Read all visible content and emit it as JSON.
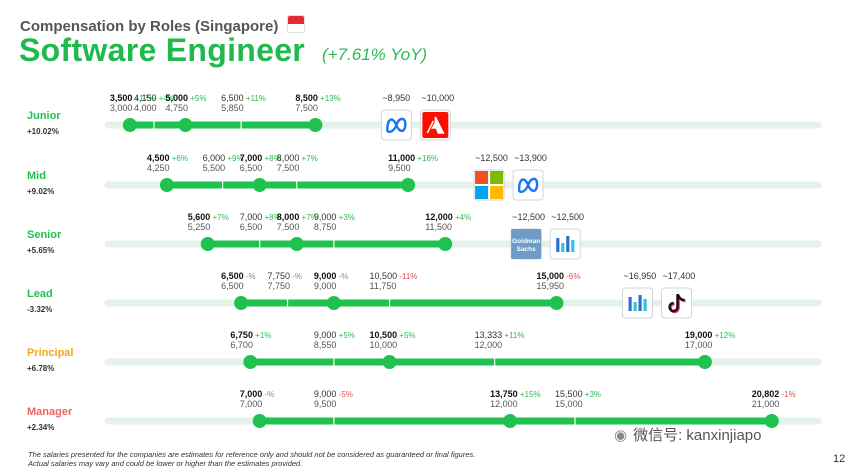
{
  "header": {
    "subtitle": "Compensation by Roles (Singapore)",
    "title": "Software Engineer",
    "yoy": "(+7.61% YoY)"
  },
  "footnote": {
    "line1": "The salaries presented for the companies are estimates for reference only and should not be considered as guaranteed or final figures.",
    "line2": "Actual salaries may vary and could be lower or higher than the estimates provided."
  },
  "page_number": "12",
  "watermark": "微信号: kanxinjiapo",
  "colors": {
    "green": "#1fc24f",
    "track": "#e4f3e8",
    "pos": "#2db954",
    "neg": "#e05050",
    "neutral": "#888888",
    "principal": "#f3a712",
    "manager": "#e9646b"
  },
  "chart_data": {
    "type": "range",
    "unit": "SGD per month",
    "xlim": [
      0,
      21500
    ],
    "roles": [
      {
        "name": "Junior",
        "change": "+10.02%",
        "color": "green",
        "points": [
          {
            "value": 3500,
            "label": "3,500",
            "delta": "+17%",
            "prev": "3,000",
            "major": true
          },
          {
            "value": 4150,
            "label": "4,150",
            "delta": "+4%",
            "prev": "4,000",
            "major": false
          },
          {
            "value": 5000,
            "label": "5,000",
            "delta": "+5%",
            "prev": "4,750",
            "major": true
          },
          {
            "value": 6500,
            "label": "6,500",
            "delta": "+11%",
            "prev": "5,850",
            "major": false
          },
          {
            "value": 8500,
            "label": "8,500",
            "delta": "+13%",
            "prev": "7,500",
            "major": true
          }
        ],
        "companies": [
          {
            "label": "~8,950",
            "logo": "meta"
          },
          {
            "label": "~10,000",
            "logo": "adobe"
          }
        ]
      },
      {
        "name": "Mid",
        "change": "+9.02%",
        "color": "green",
        "points": [
          {
            "value": 4500,
            "label": "4,500",
            "delta": "+6%",
            "prev": "4,250",
            "major": true
          },
          {
            "value": 6000,
            "label": "6,000",
            "delta": "+9%",
            "prev": "5,500",
            "major": false
          },
          {
            "value": 7000,
            "label": "7,000",
            "delta": "+8%",
            "prev": "6,500",
            "major": true
          },
          {
            "value": 8000,
            "label": "8,000",
            "delta": "+7%",
            "prev": "7,500",
            "major": false
          },
          {
            "value": 11000,
            "label": "11,000",
            "delta": "+16%",
            "prev": "9,500",
            "major": true
          }
        ],
        "companies": [
          {
            "label": "~12,500",
            "logo": "microsoft"
          },
          {
            "label": "~13,900",
            "logo": "meta"
          }
        ]
      },
      {
        "name": "Senior",
        "change": "+5.65%",
        "color": "green",
        "points": [
          {
            "value": 5600,
            "label": "5,600",
            "delta": "+7%",
            "prev": "5,250",
            "major": true
          },
          {
            "value": 7000,
            "label": "7,000",
            "delta": "+8%",
            "prev": "6,500",
            "major": false
          },
          {
            "value": 8000,
            "label": "8,000",
            "delta": "+7%",
            "prev": "7,500",
            "major": true
          },
          {
            "value": 9000,
            "label": "9,000",
            "delta": "+3%",
            "prev": "8,750",
            "major": false
          },
          {
            "value": 12000,
            "label": "12,000",
            "delta": "+4%",
            "prev": "11,500",
            "major": true
          }
        ],
        "companies": [
          {
            "label": "~12,500",
            "logo": "goldman",
            "text": "Goldman Sachs"
          },
          {
            "label": "~12,500",
            "logo": "bars"
          }
        ]
      },
      {
        "name": "Lead",
        "change": "-3.32%",
        "color": "green",
        "points": [
          {
            "value": 6500,
            "label": "6,500",
            "delta": "-%",
            "prev": "6,500",
            "major": true
          },
          {
            "value": 7750,
            "label": "7,750",
            "delta": "-%",
            "prev": "7,750",
            "major": false
          },
          {
            "value": 9000,
            "label": "9,000",
            "delta": "-%",
            "prev": "9,000",
            "major": true
          },
          {
            "value": 10500,
            "label": "10,500",
            "delta": "-11%",
            "prev": "11,750",
            "major": false
          },
          {
            "value": 15000,
            "label": "15,000",
            "delta": "-6%",
            "prev": "15,950",
            "major": true
          }
        ],
        "companies": [
          {
            "label": "~16,950",
            "logo": "bars"
          },
          {
            "label": "~17,400",
            "logo": "tiktok"
          }
        ]
      },
      {
        "name": "Principal",
        "change": "+6.78%",
        "color": "principal",
        "points": [
          {
            "value": 6750,
            "label": "6,750",
            "delta": "+1%",
            "prev": "6,700",
            "major": true
          },
          {
            "value": 9000,
            "label": "9,000",
            "delta": "+5%",
            "prev": "8,550",
            "major": false
          },
          {
            "value": 10500,
            "label": "10,500",
            "delta": "+5%",
            "prev": "10,000",
            "major": true
          },
          {
            "value": 13333,
            "label": "13,333",
            "delta": "+11%",
            "prev": "12,000",
            "major": false
          },
          {
            "value": 19000,
            "label": "19,000",
            "delta": "+12%",
            "prev": "17,000",
            "major": true
          }
        ],
        "companies": []
      },
      {
        "name": "Manager",
        "change": "+2.34%",
        "color": "manager",
        "points": [
          {
            "value": 7000,
            "label": "7,000",
            "delta": "-%",
            "prev": "7,000",
            "major": true
          },
          {
            "value": 9000,
            "label": "9,000",
            "delta": "-5%",
            "prev": "9,500",
            "major": false
          },
          {
            "value": 13750,
            "label": "13,750",
            "delta": "+15%",
            "prev": "12,000",
            "major": true
          },
          {
            "value": 15500,
            "label": "15,500",
            "delta": "+3%",
            "prev": "15,000",
            "major": false
          },
          {
            "value": 20802,
            "label": "20,802",
            "delta": "-1%",
            "prev": "21,000",
            "major": true
          }
        ],
        "companies": []
      }
    ]
  }
}
